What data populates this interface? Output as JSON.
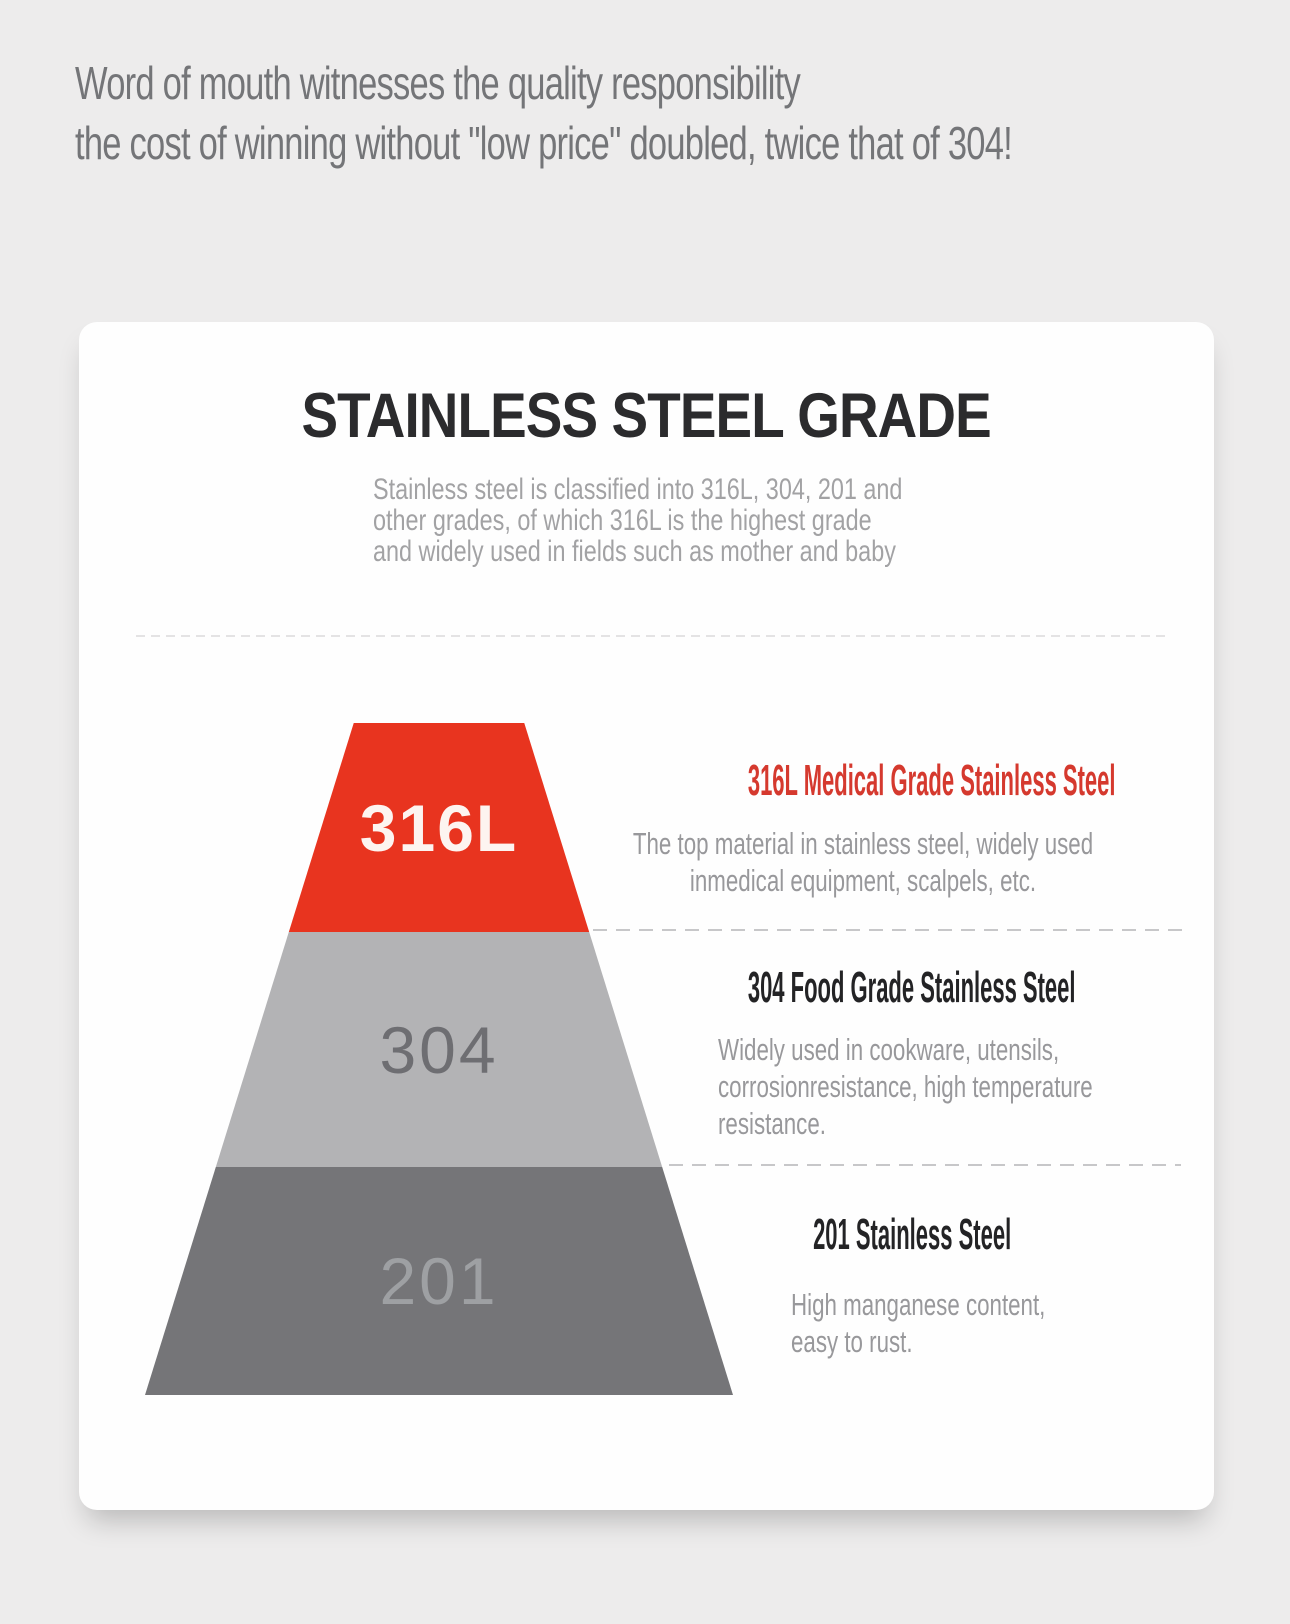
{
  "colors": {
    "page_background": "#edecec",
    "card_background": "#fefefe",
    "accent_red": "#e8341f",
    "band_304_gray": "#b3b3b5",
    "band_201_gray": "#757578",
    "red_heading": "#d5392e",
    "dark_heading": "#232325",
    "body_gray": "#98989b"
  },
  "header": {
    "line1": "Word of mouth witnesses the quality responsibility",
    "line2": "the cost of winning without \"low price\" doubled, twice that of 304!"
  },
  "card": {
    "title": "STAINLESS STEEL GRADE",
    "subtitle_lines": [
      "Stainless steel is classified into 316L, 304, 201 and",
      "other grades, of which 316L is the highest grade",
      "and widely used in fields such as mother and baby"
    ]
  },
  "pyramid": {
    "bands": [
      {
        "label": "316L",
        "color": "#e8341f",
        "text_color": "#fdf4f0"
      },
      {
        "label": "304",
        "color": "#b3b3b5",
        "text_color": "#6e6e72"
      },
      {
        "label": "201",
        "color": "#757578",
        "text_color": "#9ea0a3"
      }
    ]
  },
  "sections": [
    {
      "heading": "316L Medical Grade Stainless Steel",
      "heading_color": "#d5392e",
      "body": [
        "The top material in stainless steel, widely used",
        "inmedical equipment, scalpels, etc."
      ]
    },
    {
      "heading": "304 Food Grade Stainless Steel",
      "heading_color": "#232325",
      "body": [
        "Widely used in cookware, utensils,",
        "corrosionresistance, high temperature",
        "resistance."
      ]
    },
    {
      "heading": "201 Stainless Steel",
      "heading_color": "#232325",
      "body": [
        "High manganese content,",
        "easy to rust."
      ]
    }
  ]
}
